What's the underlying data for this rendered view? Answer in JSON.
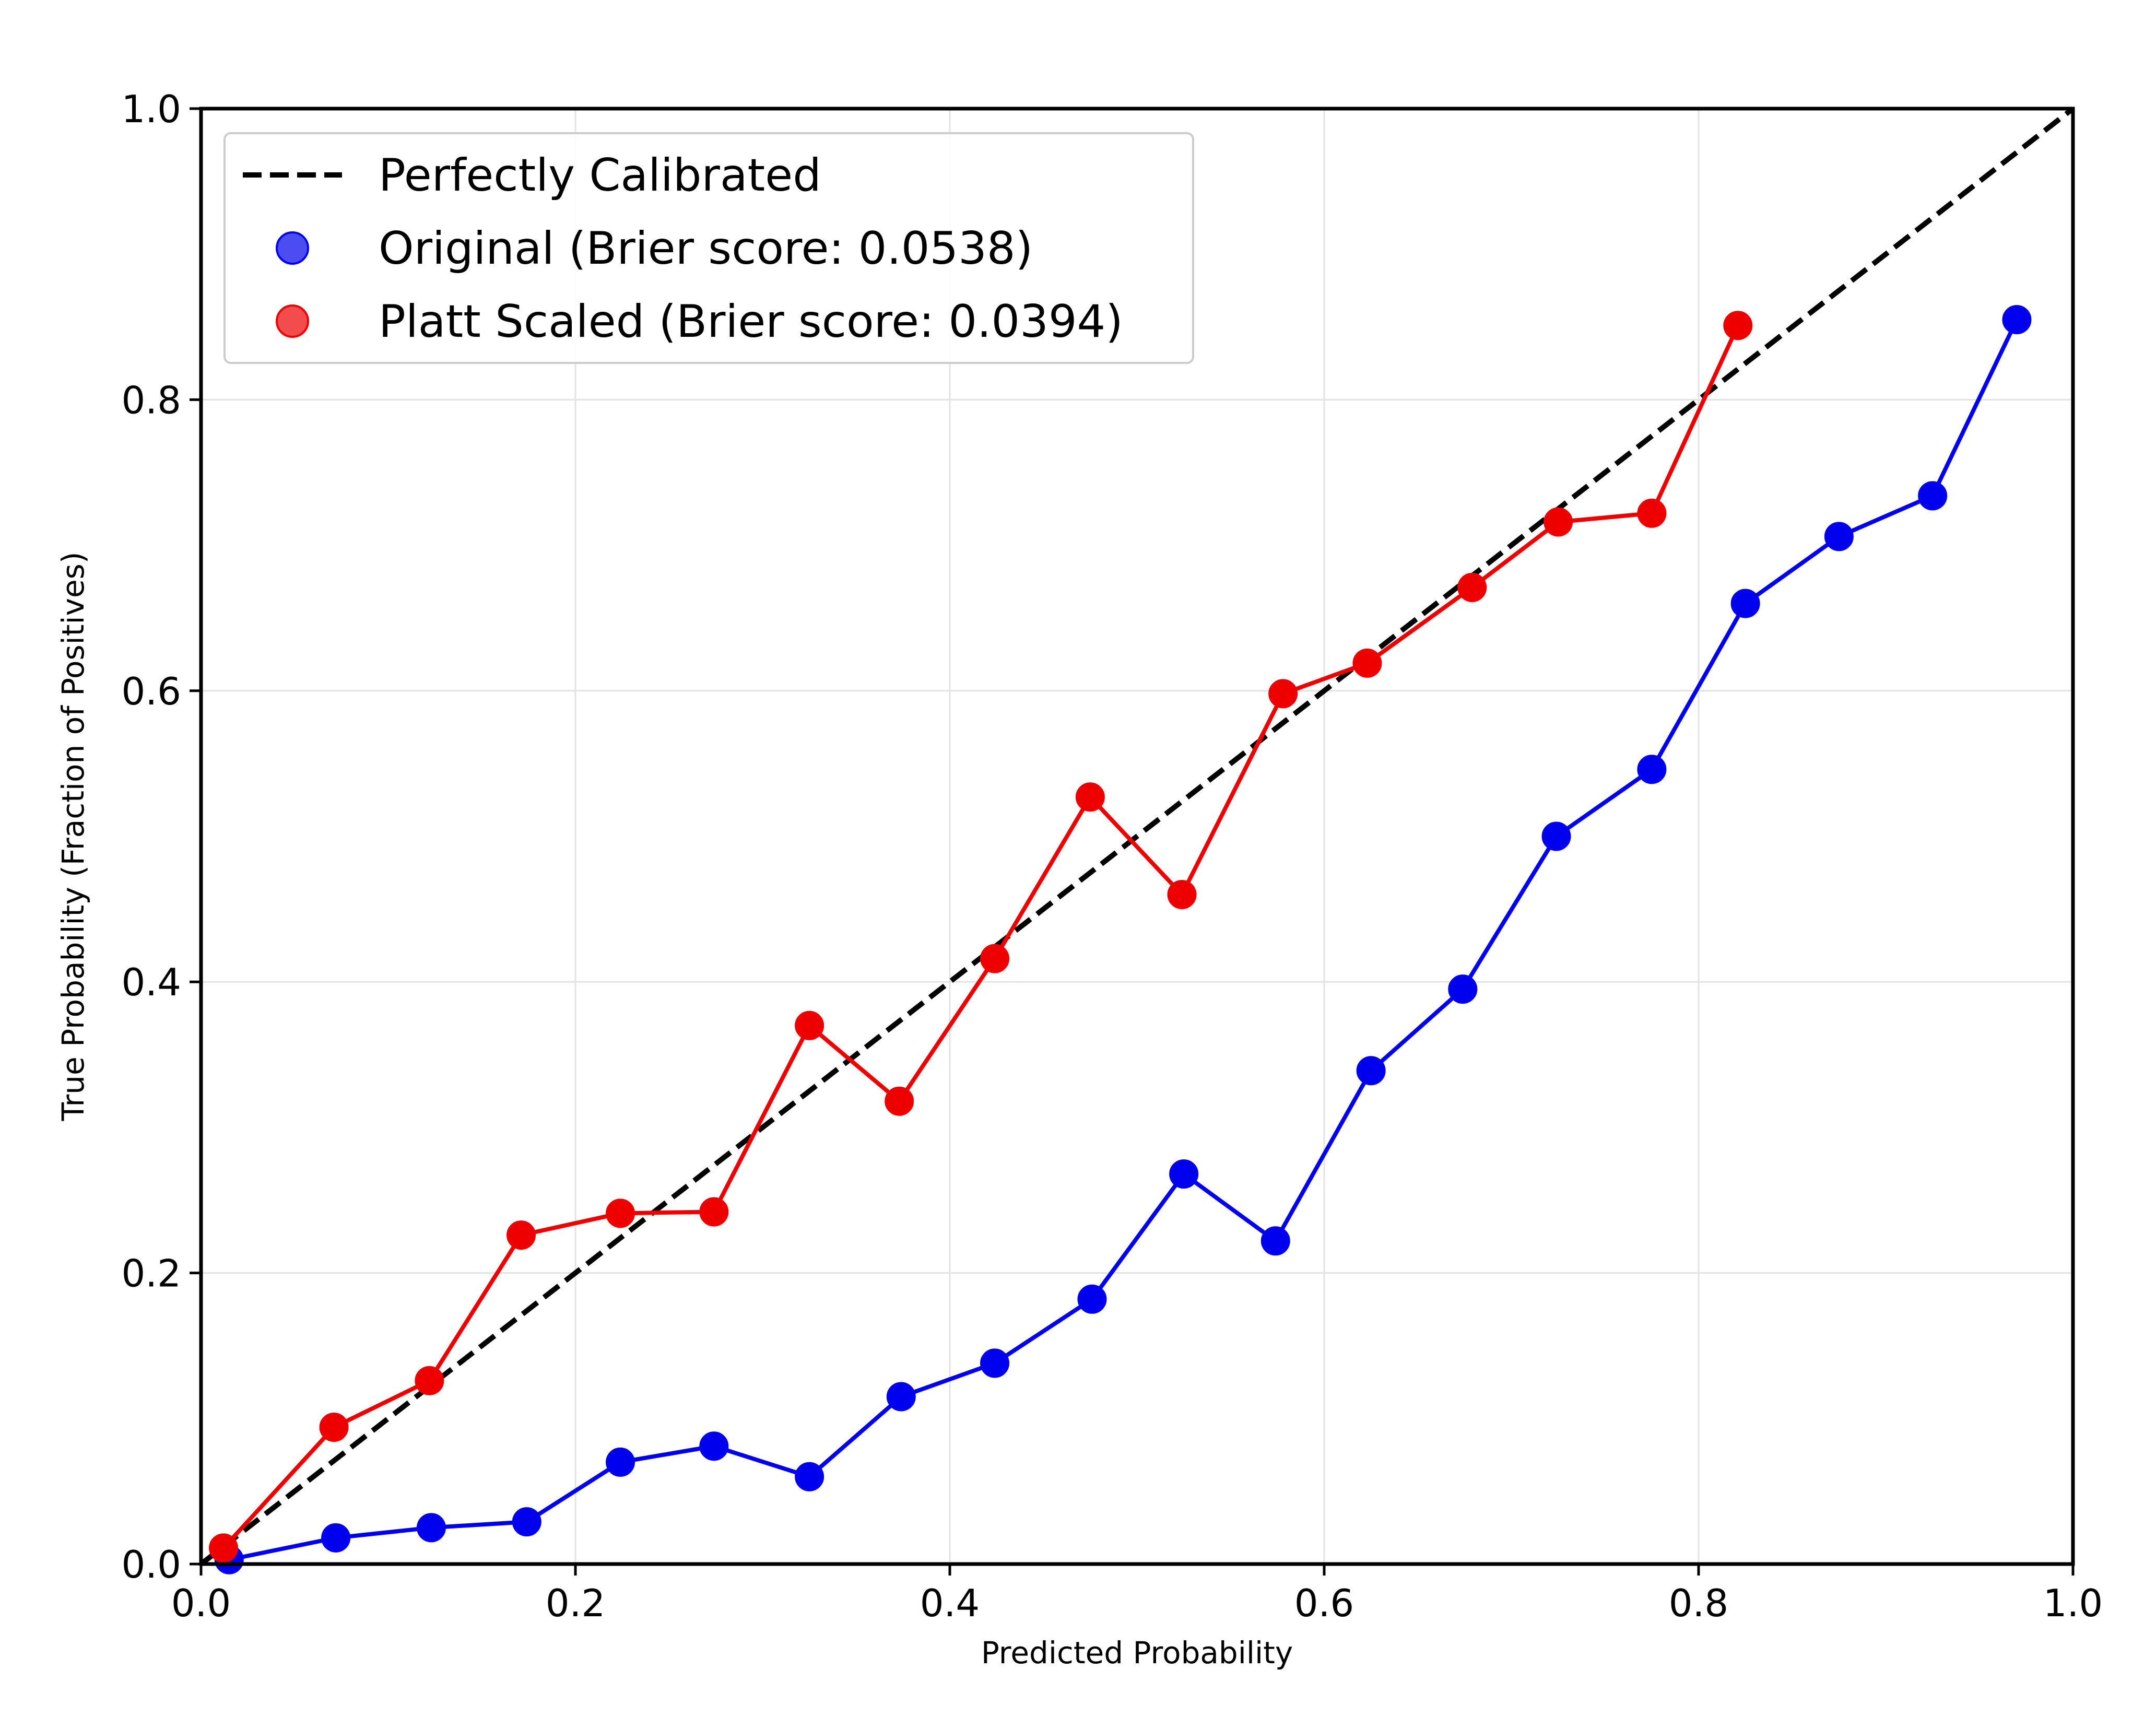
{
  "chart_data": {
    "type": "line",
    "title": "",
    "xlabel": "Predicted Probability",
    "ylabel": "True Probability (Fraction of Positives)",
    "xlim": [
      0.0,
      1.0
    ],
    "ylim": [
      0.0,
      1.0
    ],
    "xticks": [
      "0.0",
      "0.2",
      "0.4",
      "0.6",
      "0.8",
      "1.0"
    ],
    "yticks": [
      "0.0",
      "0.2",
      "0.4",
      "0.6",
      "0.8",
      "1.0"
    ],
    "grid": true,
    "legend_position": "top-left",
    "reference_line": {
      "name": "Perfectly Calibrated",
      "x": [
        0.0,
        1.0
      ],
      "y": [
        0.0,
        1.0
      ],
      "color": "#000000",
      "style": "dashed"
    },
    "series": [
      {
        "name": "Original (Brier score: 0.0538)",
        "color": "#0000ee",
        "x": [
          0.015,
          0.072,
          0.123,
          0.174,
          0.224,
          0.274,
          0.325,
          0.374,
          0.424,
          0.476,
          0.525,
          0.574,
          0.625,
          0.674,
          0.724,
          0.775,
          0.825,
          0.875,
          0.925,
          0.97
        ],
        "y": [
          0.003,
          0.018,
          0.025,
          0.029,
          0.07,
          0.081,
          0.06,
          0.115,
          0.138,
          0.182,
          0.268,
          0.222,
          0.339,
          0.395,
          0.5,
          0.546,
          0.66,
          0.706,
          0.734,
          0.855
        ]
      },
      {
        "name": "Platt Scaled (Brier score: 0.0394)",
        "color": "#ee0000",
        "x": [
          0.012,
          0.071,
          0.122,
          0.171,
          0.224,
          0.274,
          0.325,
          0.373,
          0.424,
          0.475,
          0.524,
          0.578,
          0.623,
          0.679,
          0.725,
          0.775,
          0.821
        ],
        "y": [
          0.011,
          0.094,
          0.126,
          0.226,
          0.241,
          0.242,
          0.37,
          0.318,
          0.416,
          0.527,
          0.46,
          0.598,
          0.619,
          0.671,
          0.716,
          0.722,
          0.851
        ]
      }
    ]
  }
}
